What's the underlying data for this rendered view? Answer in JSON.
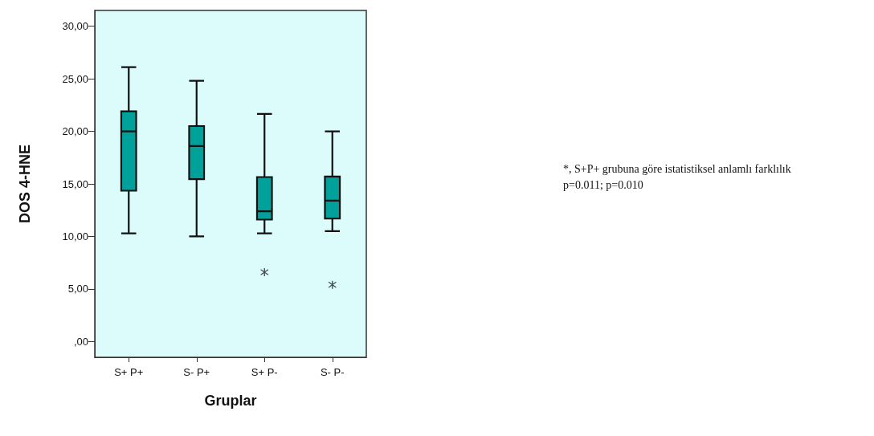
{
  "chart_data": {
    "type": "box",
    "xlabel": "Gruplar",
    "ylabel": "DOS 4-HNE",
    "categories": [
      "S+ P+",
      "S- P+",
      "S+ P-",
      "S- P-"
    ],
    "boxes": [
      {
        "low": 10.3,
        "q1": 14.35,
        "median": 20.0,
        "q3": 21.9,
        "high": 26.1
      },
      {
        "low": 10.0,
        "q1": 15.45,
        "median": 18.6,
        "q3": 20.5,
        "high": 24.8
      },
      {
        "low": 10.3,
        "q1": 11.6,
        "median": 12.4,
        "q3": 15.65,
        "high": 21.65,
        "outliers": [
          6.6
        ]
      },
      {
        "low": 10.5,
        "q1": 11.7,
        "median": 13.4,
        "q3": 15.7,
        "high": 20.0,
        "outliers": [
          5.4
        ]
      }
    ],
    "color": "#00a19b",
    "ylim": [
      -1.5,
      31.5
    ],
    "yticks": [
      {
        "value": 0,
        "label": ",00"
      },
      {
        "value": 5,
        "label": "5,00"
      },
      {
        "value": 10,
        "label": "10,00"
      },
      {
        "value": 15,
        "label": "15,00"
      },
      {
        "value": 20,
        "label": "20,00"
      },
      {
        "value": 25,
        "label": "25,00"
      },
      {
        "value": 30,
        "label": "30,00"
      }
    ],
    "marker": "star",
    "annotations": [
      "*, S+P+ grubuna göre istatistiksel anlamlı farklılık p=0.011; p=0.010"
    ]
  }
}
